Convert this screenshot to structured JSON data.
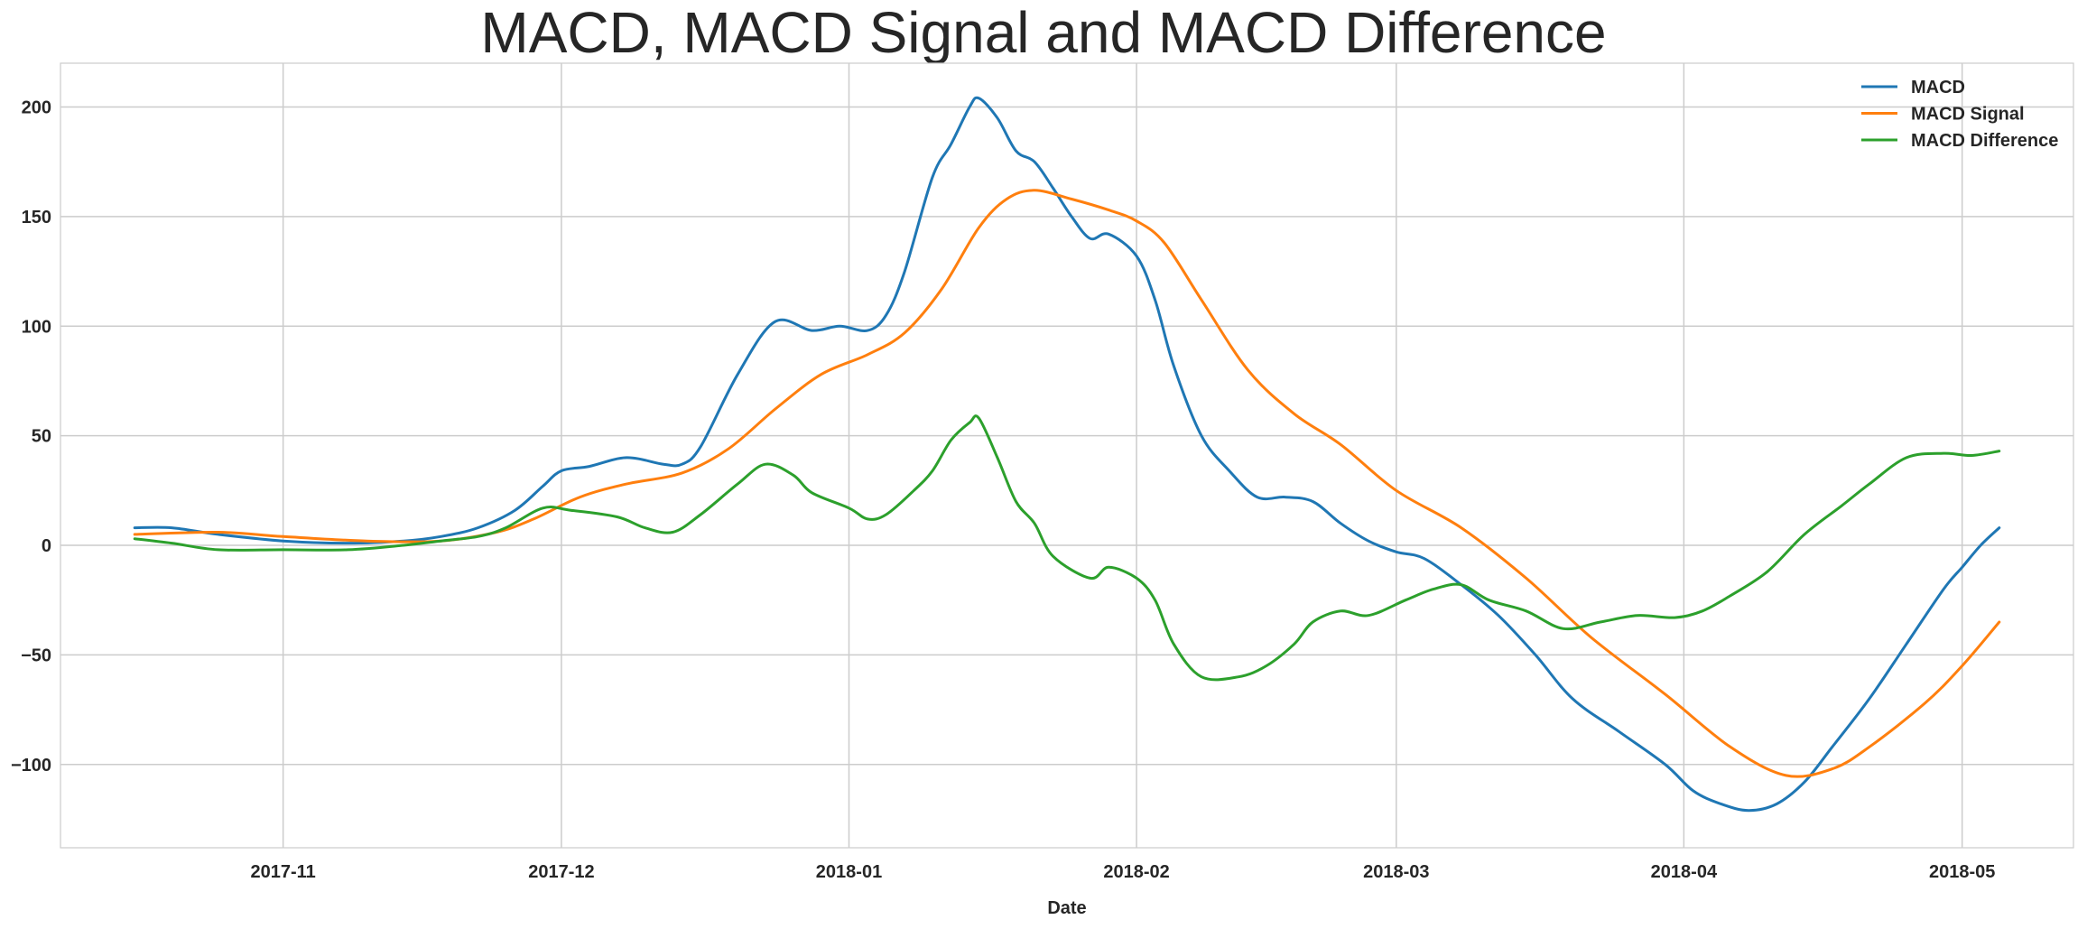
{
  "chart_data": {
    "type": "line",
    "title": "MACD, MACD Signal and MACD Difference",
    "xlabel": "Date",
    "ylabel": "",
    "x_ticks": [
      "2017-11",
      "2017-12",
      "2018-01",
      "2018-02",
      "2018-03",
      "2018-04",
      "2018-05"
    ],
    "y_ticks": [
      200,
      150,
      100,
      50,
      0,
      -50,
      -100
    ],
    "xlim": [
      "2017-10-08",
      "2018-05-13"
    ],
    "ylim": [
      -138,
      220
    ],
    "grid": true,
    "legend_position": "top-right",
    "series": [
      {
        "name": "MACD",
        "color": "#1f77b4",
        "points": [
          [
            "2017-10-16",
            8
          ],
          [
            "2017-10-20",
            8
          ],
          [
            "2017-10-25",
            5
          ],
          [
            "2017-11-01",
            2
          ],
          [
            "2017-11-08",
            1
          ],
          [
            "2017-11-14",
            2
          ],
          [
            "2017-11-18",
            4
          ],
          [
            "2017-11-22",
            8
          ],
          [
            "2017-11-26",
            16
          ],
          [
            "2017-11-29",
            27
          ],
          [
            "2017-12-01",
            34
          ],
          [
            "2017-12-04",
            36
          ],
          [
            "2017-12-08",
            40
          ],
          [
            "2017-12-12",
            37
          ],
          [
            "2017-12-14",
            37
          ],
          [
            "2017-12-16",
            45
          ],
          [
            "2017-12-20",
            78
          ],
          [
            "2017-12-24",
            102
          ],
          [
            "2017-12-28",
            98
          ],
          [
            "2017-12-31",
            100
          ],
          [
            "2018-01-03",
            98
          ],
          [
            "2018-01-05",
            105
          ],
          [
            "2018-01-07",
            125
          ],
          [
            "2018-01-10",
            168
          ],
          [
            "2018-01-12",
            183
          ],
          [
            "2018-01-14",
            200
          ],
          [
            "2018-01-15",
            204
          ],
          [
            "2018-01-17",
            195
          ],
          [
            "2018-01-19",
            180
          ],
          [
            "2018-01-21",
            175
          ],
          [
            "2018-01-23",
            163
          ],
          [
            "2018-01-25",
            150
          ],
          [
            "2018-01-27",
            140
          ],
          [
            "2018-01-29",
            142
          ],
          [
            "2018-02-01",
            132
          ],
          [
            "2018-02-03",
            112
          ],
          [
            "2018-02-05",
            82
          ],
          [
            "2018-02-08",
            50
          ],
          [
            "2018-02-11",
            34
          ],
          [
            "2018-02-14",
            22
          ],
          [
            "2018-02-17",
            22
          ],
          [
            "2018-02-20",
            20
          ],
          [
            "2018-02-23",
            10
          ],
          [
            "2018-02-26",
            2
          ],
          [
            "2018-03-01",
            -3
          ],
          [
            "2018-03-04",
            -6
          ],
          [
            "2018-03-08",
            -18
          ],
          [
            "2018-03-12",
            -32
          ],
          [
            "2018-03-16",
            -50
          ],
          [
            "2018-03-20",
            -70
          ],
          [
            "2018-03-25",
            -85
          ],
          [
            "2018-03-30",
            -100
          ],
          [
            "2018-04-02",
            -112
          ],
          [
            "2018-04-05",
            -118
          ],
          [
            "2018-04-08",
            -121
          ],
          [
            "2018-04-11",
            -118
          ],
          [
            "2018-04-14",
            -108
          ],
          [
            "2018-04-17",
            -92
          ],
          [
            "2018-04-21",
            -70
          ],
          [
            "2018-04-25",
            -45
          ],
          [
            "2018-04-29",
            -20
          ],
          [
            "2018-05-01",
            -10
          ],
          [
            "2018-05-03",
            0
          ],
          [
            "2018-05-05",
            8
          ]
        ]
      },
      {
        "name": "MACD Signal",
        "color": "#ff7f0e",
        "points": [
          [
            "2017-10-16",
            5
          ],
          [
            "2017-10-25",
            6
          ],
          [
            "2017-11-01",
            4
          ],
          [
            "2017-11-10",
            2
          ],
          [
            "2017-11-18",
            2
          ],
          [
            "2017-11-24",
            6
          ],
          [
            "2017-11-28",
            12
          ],
          [
            "2017-12-03",
            22
          ],
          [
            "2017-12-08",
            28
          ],
          [
            "2017-12-14",
            33
          ],
          [
            "2017-12-19",
            44
          ],
          [
            "2017-12-24",
            62
          ],
          [
            "2017-12-29",
            78
          ],
          [
            "2018-01-03",
            87
          ],
          [
            "2018-01-07",
            97
          ],
          [
            "2018-01-11",
            117
          ],
          [
            "2018-01-15",
            145
          ],
          [
            "2018-01-18",
            158
          ],
          [
            "2018-01-21",
            162
          ],
          [
            "2018-01-25",
            158
          ],
          [
            "2018-01-29",
            153
          ],
          [
            "2018-02-01",
            148
          ],
          [
            "2018-02-04",
            138
          ],
          [
            "2018-02-08",
            112
          ],
          [
            "2018-02-13",
            80
          ],
          [
            "2018-02-18",
            60
          ],
          [
            "2018-02-23",
            46
          ],
          [
            "2018-03-01",
            25
          ],
          [
            "2018-03-08",
            8
          ],
          [
            "2018-03-15",
            -15
          ],
          [
            "2018-03-22",
            -42
          ],
          [
            "2018-03-30",
            -68
          ],
          [
            "2018-04-06",
            -92
          ],
          [
            "2018-04-12",
            -105
          ],
          [
            "2018-04-17",
            -102
          ],
          [
            "2018-04-21",
            -92
          ],
          [
            "2018-04-27",
            -72
          ],
          [
            "2018-05-01",
            -55
          ],
          [
            "2018-05-05",
            -35
          ]
        ]
      },
      {
        "name": "MACD Difference",
        "color": "#2ca02c",
        "points": [
          [
            "2017-10-16",
            3
          ],
          [
            "2017-10-20",
            1
          ],
          [
            "2017-10-25",
            -2
          ],
          [
            "2017-11-01",
            -2
          ],
          [
            "2017-11-08",
            -2
          ],
          [
            "2017-11-14",
            0
          ],
          [
            "2017-11-18",
            2
          ],
          [
            "2017-11-22",
            4
          ],
          [
            "2017-11-25",
            8
          ],
          [
            "2017-11-29",
            17
          ],
          [
            "2017-12-02",
            16
          ],
          [
            "2017-12-07",
            13
          ],
          [
            "2017-12-10",
            8
          ],
          [
            "2017-12-13",
            6
          ],
          [
            "2017-12-16",
            14
          ],
          [
            "2017-12-20",
            28
          ],
          [
            "2017-12-23",
            37
          ],
          [
            "2017-12-26",
            32
          ],
          [
            "2017-12-28",
            24
          ],
          [
            "2018-01-01",
            17
          ],
          [
            "2018-01-03",
            12
          ],
          [
            "2018-01-05",
            14
          ],
          [
            "2018-01-08",
            25
          ],
          [
            "2018-01-10",
            34
          ],
          [
            "2018-01-12",
            48
          ],
          [
            "2018-01-14",
            56
          ],
          [
            "2018-01-15",
            58
          ],
          [
            "2018-01-17",
            40
          ],
          [
            "2018-01-19",
            20
          ],
          [
            "2018-01-21",
            10
          ],
          [
            "2018-01-23",
            -5
          ],
          [
            "2018-01-27",
            -15
          ],
          [
            "2018-01-29",
            -10
          ],
          [
            "2018-02-01",
            -15
          ],
          [
            "2018-02-03",
            -25
          ],
          [
            "2018-02-05",
            -45
          ],
          [
            "2018-02-08",
            -60
          ],
          [
            "2018-02-12",
            -60
          ],
          [
            "2018-02-15",
            -55
          ],
          [
            "2018-02-18",
            -45
          ],
          [
            "2018-02-20",
            -35
          ],
          [
            "2018-02-23",
            -30
          ],
          [
            "2018-02-26",
            -32
          ],
          [
            "2018-03-02",
            -25
          ],
          [
            "2018-03-05",
            -20
          ],
          [
            "2018-03-08",
            -18
          ],
          [
            "2018-03-11",
            -25
          ],
          [
            "2018-03-15",
            -30
          ],
          [
            "2018-03-19",
            -38
          ],
          [
            "2018-03-23",
            -35
          ],
          [
            "2018-03-27",
            -32
          ],
          [
            "2018-03-31",
            -33
          ],
          [
            "2018-04-03",
            -30
          ],
          [
            "2018-04-06",
            -23
          ],
          [
            "2018-04-10",
            -12
          ],
          [
            "2018-04-14",
            5
          ],
          [
            "2018-04-18",
            18
          ],
          [
            "2018-04-21",
            28
          ],
          [
            "2018-04-25",
            40
          ],
          [
            "2018-04-29",
            42
          ],
          [
            "2018-05-02",
            41
          ],
          [
            "2018-05-05",
            43
          ]
        ]
      }
    ]
  }
}
